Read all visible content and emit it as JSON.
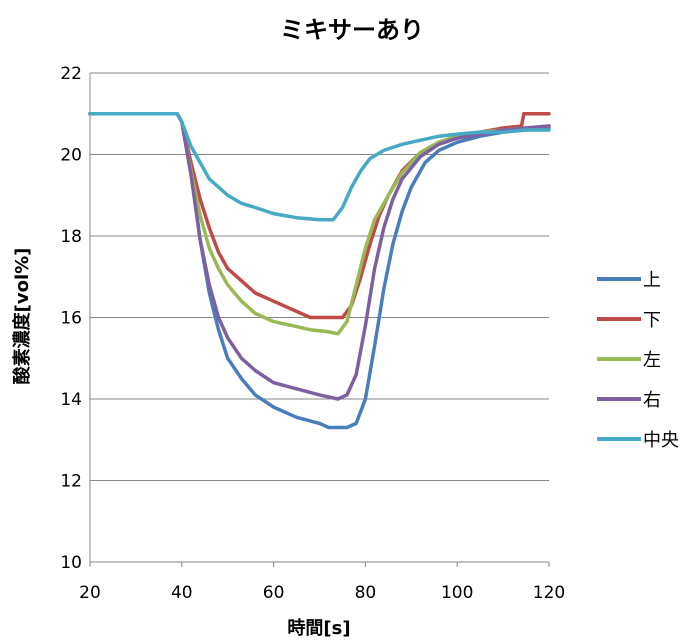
{
  "chart_data": {
    "type": "line",
    "title": "ミキサーあり",
    "xlabel": "時間[s]",
    "ylabel": "酸素濃度[vol%]",
    "xlim": [
      20,
      120
    ],
    "ylim": [
      10,
      22
    ],
    "xticks": [
      20,
      40,
      60,
      80,
      100,
      120
    ],
    "yticks": [
      10,
      12,
      14,
      16,
      18,
      20,
      22
    ],
    "grid": "horizontal",
    "legend": "right",
    "series": [
      {
        "name": "上",
        "color": "#4a7ebb",
        "points": [
          [
            20,
            21
          ],
          [
            39,
            21
          ],
          [
            40,
            20.8
          ],
          [
            42,
            19.6
          ],
          [
            44,
            17.9
          ],
          [
            46,
            16.6
          ],
          [
            48,
            15.7
          ],
          [
            50,
            15.0
          ],
          [
            53,
            14.5
          ],
          [
            56,
            14.1
          ],
          [
            60,
            13.8
          ],
          [
            65,
            13.55
          ],
          [
            70,
            13.4
          ],
          [
            72,
            13.3
          ],
          [
            76,
            13.3
          ],
          [
            78,
            13.4
          ],
          [
            80,
            14.0
          ],
          [
            82,
            15.3
          ],
          [
            84,
            16.7
          ],
          [
            86,
            17.8
          ],
          [
            88,
            18.6
          ],
          [
            90,
            19.2
          ],
          [
            93,
            19.8
          ],
          [
            96,
            20.1
          ],
          [
            100,
            20.3
          ],
          [
            105,
            20.45
          ],
          [
            110,
            20.55
          ],
          [
            115,
            20.6
          ],
          [
            120,
            20.65
          ]
        ]
      },
      {
        "name": "下",
        "color": "#be4b48",
        "points": [
          [
            20,
            21
          ],
          [
            39,
            21
          ],
          [
            40,
            20.8
          ],
          [
            42,
            19.8
          ],
          [
            44,
            18.9
          ],
          [
            46,
            18.2
          ],
          [
            48,
            17.6
          ],
          [
            50,
            17.2
          ],
          [
            53,
            16.9
          ],
          [
            56,
            16.6
          ],
          [
            60,
            16.4
          ],
          [
            64,
            16.2
          ],
          [
            68,
            16.0
          ],
          [
            72,
            16.0
          ],
          [
            75,
            16.0
          ],
          [
            77,
            16.3
          ],
          [
            79,
            17.0
          ],
          [
            81,
            17.8
          ],
          [
            83,
            18.5
          ],
          [
            85,
            19.0
          ],
          [
            88,
            19.6
          ],
          [
            92,
            20.05
          ],
          [
            96,
            20.3
          ],
          [
            100,
            20.45
          ],
          [
            105,
            20.55
          ],
          [
            110,
            20.65
          ],
          [
            114,
            20.7
          ],
          [
            114.5,
            21.0
          ],
          [
            120,
            21.0
          ]
        ]
      },
      {
        "name": "左",
        "color": "#98b954",
        "points": [
          [
            20,
            21
          ],
          [
            39,
            21
          ],
          [
            40,
            20.8
          ],
          [
            42,
            19.6
          ],
          [
            44,
            18.5
          ],
          [
            46,
            17.7
          ],
          [
            48,
            17.2
          ],
          [
            50,
            16.8
          ],
          [
            53,
            16.4
          ],
          [
            56,
            16.1
          ],
          [
            60,
            15.9
          ],
          [
            64,
            15.8
          ],
          [
            68,
            15.7
          ],
          [
            72,
            15.65
          ],
          [
            74,
            15.6
          ],
          [
            76,
            15.9
          ],
          [
            78,
            16.8
          ],
          [
            80,
            17.7
          ],
          [
            82,
            18.4
          ],
          [
            85,
            19.0
          ],
          [
            88,
            19.55
          ],
          [
            92,
            20.05
          ],
          [
            96,
            20.3
          ],
          [
            100,
            20.45
          ],
          [
            105,
            20.55
          ],
          [
            110,
            20.6
          ],
          [
            115,
            20.65
          ],
          [
            120,
            20.7
          ]
        ]
      },
      {
        "name": "右",
        "color": "#7d60a0",
        "points": [
          [
            20,
            21
          ],
          [
            39,
            21
          ],
          [
            40,
            20.8
          ],
          [
            42,
            19.5
          ],
          [
            44,
            17.9
          ],
          [
            46,
            16.8
          ],
          [
            48,
            16.0
          ],
          [
            50,
            15.5
          ],
          [
            53,
            15.0
          ],
          [
            56,
            14.7
          ],
          [
            60,
            14.4
          ],
          [
            65,
            14.25
          ],
          [
            70,
            14.1
          ],
          [
            74,
            14.0
          ],
          [
            76,
            14.1
          ],
          [
            78,
            14.6
          ],
          [
            80,
            15.8
          ],
          [
            82,
            17.2
          ],
          [
            84,
            18.2
          ],
          [
            86,
            18.9
          ],
          [
            88,
            19.4
          ],
          [
            92,
            19.95
          ],
          [
            96,
            20.25
          ],
          [
            100,
            20.4
          ],
          [
            105,
            20.5
          ],
          [
            110,
            20.6
          ],
          [
            115,
            20.65
          ],
          [
            120,
            20.7
          ]
        ]
      },
      {
        "name": "中央",
        "color": "#46aac5",
        "points": [
          [
            20,
            21
          ],
          [
            39,
            21
          ],
          [
            40,
            20.8
          ],
          [
            42,
            20.2
          ],
          [
            44,
            19.8
          ],
          [
            46,
            19.4
          ],
          [
            48,
            19.2
          ],
          [
            50,
            19.0
          ],
          [
            53,
            18.8
          ],
          [
            56,
            18.7
          ],
          [
            60,
            18.55
          ],
          [
            65,
            18.45
          ],
          [
            70,
            18.4
          ],
          [
            73,
            18.4
          ],
          [
            75,
            18.7
          ],
          [
            77,
            19.2
          ],
          [
            79,
            19.6
          ],
          [
            81,
            19.9
          ],
          [
            84,
            20.1
          ],
          [
            88,
            20.25
          ],
          [
            92,
            20.35
          ],
          [
            96,
            20.45
          ],
          [
            100,
            20.5
          ],
          [
            105,
            20.55
          ],
          [
            110,
            20.55
          ],
          [
            115,
            20.6
          ],
          [
            120,
            20.6
          ]
        ]
      }
    ]
  }
}
